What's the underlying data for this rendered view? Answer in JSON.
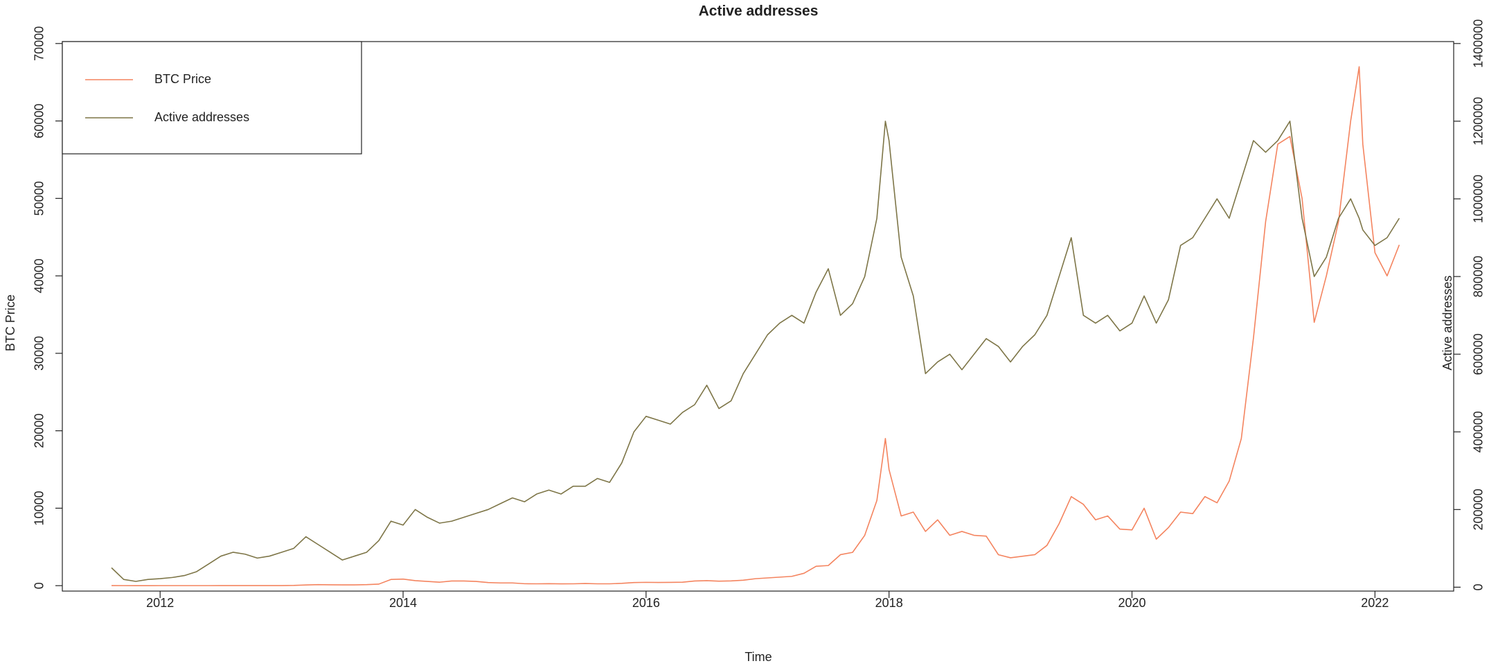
{
  "chart_data": {
    "type": "line",
    "title": "Active addresses",
    "x_label": "Time",
    "y_label": "BTC Price",
    "y2_label": "Active addresses",
    "legend": "top-left",
    "x": [
      2011.6,
      2011.7,
      2011.8,
      2011.9,
      2012,
      2012.1,
      2012.2,
      2012.3,
      2012.4,
      2012.5,
      2012.6,
      2012.7,
      2012.8,
      2012.9,
      2013,
      2013.1,
      2013.2,
      2013.3,
      2013.4,
      2013.5,
      2013.6,
      2013.7,
      2013.8,
      2013.9,
      2014,
      2014.1,
      2014.2,
      2014.3,
      2014.4,
      2014.5,
      2014.6,
      2014.7,
      2014.8,
      2014.9,
      2015,
      2015.1,
      2015.2,
      2015.3,
      2015.4,
      2015.5,
      2015.6,
      2015.7,
      2015.8,
      2015.9,
      2016,
      2016.1,
      2016.2,
      2016.3,
      2016.4,
      2016.5,
      2016.6,
      2016.7,
      2016.8,
      2016.9,
      2017,
      2017.1,
      2017.2,
      2017.3,
      2017.4,
      2017.5,
      2017.6,
      2017.7,
      2017.8,
      2017.9,
      2017.97,
      2018,
      2018.05,
      2018.1,
      2018.2,
      2018.3,
      2018.4,
      2018.5,
      2018.6,
      2018.7,
      2018.8,
      2018.9,
      2019,
      2019.1,
      2019.2,
      2019.3,
      2019.4,
      2019.5,
      2019.6,
      2019.7,
      2019.8,
      2019.9,
      2020,
      2020.1,
      2020.2,
      2020.3,
      2020.4,
      2020.5,
      2020.6,
      2020.7,
      2020.8,
      2020.9,
      2021,
      2021.1,
      2021.2,
      2021.3,
      2021.4,
      2021.5,
      2021.6,
      2021.7,
      2021.8,
      2021.87,
      2021.9,
      2022,
      2022.1,
      2022.2
    ],
    "series": [
      {
        "name": "BTC Price",
        "color": "#f4845f",
        "axis": "y",
        "values": [
          8,
          5,
          3,
          3,
          5,
          5,
          5,
          5,
          5,
          7,
          10,
          12,
          11,
          13,
          14,
          30,
          90,
          130,
          110,
          100,
          100,
          130,
          200,
          800,
          850,
          650,
          550,
          450,
          600,
          600,
          550,
          400,
          350,
          350,
          250,
          240,
          260,
          230,
          240,
          280,
          240,
          240,
          300,
          400,
          430,
          410,
          420,
          450,
          600,
          650,
          580,
          610,
          700,
          900,
          1000,
          1100,
          1200,
          1600,
          2500,
          2600,
          4000,
          4300,
          6500,
          11000,
          19000,
          15000,
          12000,
          9000,
          9500,
          7000,
          8500,
          6500,
          7000,
          6500,
          6400,
          4000,
          3600,
          3800,
          4000,
          5200,
          8000,
          11500,
          10500,
          8500,
          9000,
          7300,
          7200,
          10000,
          6000,
          7500,
          9500,
          9300,
          11500,
          10700,
          13500,
          19000,
          32000,
          47000,
          57000,
          58000,
          50000,
          34000,
          40000,
          47000,
          60000,
          67000,
          57000,
          43000,
          40000,
          44000
        ]
      },
      {
        "name": "Active addresses",
        "color": "#7d7547",
        "axis": "y2",
        "values": [
          50000,
          20000,
          15000,
          20000,
          22000,
          25000,
          30000,
          40000,
          60000,
          80000,
          90000,
          85000,
          75000,
          80000,
          90000,
          100000,
          130000,
          110000,
          90000,
          70000,
          80000,
          90000,
          120000,
          170000,
          160000,
          200000,
          180000,
          165000,
          170000,
          180000,
          190000,
          200000,
          215000,
          230000,
          220000,
          240000,
          250000,
          240000,
          260000,
          260000,
          280000,
          270000,
          320000,
          400000,
          440000,
          430000,
          420000,
          450000,
          470000,
          520000,
          460000,
          480000,
          550000,
          600000,
          650000,
          680000,
          700000,
          680000,
          760000,
          820000,
          700000,
          730000,
          800000,
          950000,
          1200000,
          1150000,
          1000000,
          850000,
          750000,
          550000,
          580000,
          600000,
          560000,
          600000,
          640000,
          620000,
          580000,
          620000,
          650000,
          700000,
          800000,
          900000,
          700000,
          680000,
          700000,
          660000,
          680000,
          750000,
          680000,
          740000,
          880000,
          900000,
          950000,
          1000000,
          950000,
          1050000,
          1150000,
          1120000,
          1150000,
          1200000,
          950000,
          800000,
          850000,
          950000,
          1000000,
          950000,
          920000,
          880000,
          900000,
          950000
        ]
      }
    ],
    "xlim": [
      2011.195,
      2022.648
    ],
    "xticks": [
      2012,
      2014,
      2016,
      2018,
      2020,
      2022
    ],
    "ylim": [
      -700,
      70250
    ],
    "yticks": [
      0,
      10000,
      20000,
      30000,
      40000,
      50000,
      60000,
      70000
    ],
    "y2lim": [
      -10000,
      1405000
    ],
    "y2ticks": [
      0,
      200000,
      400000,
      600000,
      800000,
      1000000,
      1200000,
      1400000
    ]
  }
}
